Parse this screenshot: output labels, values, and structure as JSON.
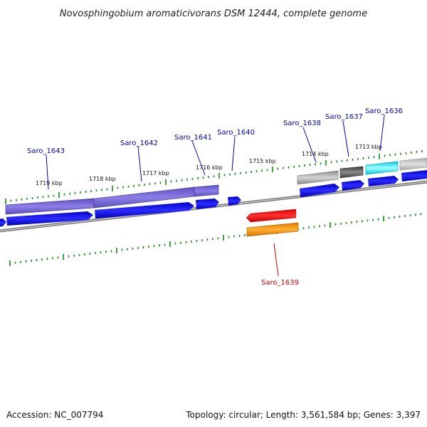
{
  "title": "Novosphingobium aromaticivorans DSM 12444, complete genome",
  "footer": {
    "accession": "Accession: NC_007794",
    "summary": "Topology: circular; Length: 3,561,584 bp; Genes: 3,397"
  },
  "ticks": [
    {
      "label": "1719 kbp"
    },
    {
      "label": "1718 kbp"
    },
    {
      "label": "1717 kbp"
    },
    {
      "label": "1716 kbp"
    },
    {
      "label": "1715 kbp"
    },
    {
      "label": "1714 kbp"
    },
    {
      "label": "1713 kbp"
    }
  ],
  "genes": [
    {
      "label": "Saro_1643",
      "strand": "forward"
    },
    {
      "label": "Saro_1642",
      "strand": "forward"
    },
    {
      "label": "Saro_1641",
      "strand": "forward"
    },
    {
      "label": "Saro_1640",
      "strand": "forward"
    },
    {
      "label": "Saro_1638",
      "strand": "forward"
    },
    {
      "label": "Saro_1637",
      "strand": "forward"
    },
    {
      "label": "Saro_1636",
      "strand": "forward"
    },
    {
      "label": "Saro_1639",
      "strand": "reverse"
    }
  ],
  "colors": {
    "backbone": "#888888",
    "forward_cds": "#0a0ae0",
    "reverse_cds": "#e00000",
    "reverse_feature": "#f08a00",
    "tick": "#1a8a1a",
    "label_forward": "#0000b0",
    "label_reverse": "#cc0000",
    "feature_purple": "#6a5acd",
    "feature_grey": "#a0a0a0",
    "feature_dark_grey": "#5a5a5a",
    "feature_cyan": "#00e0f0"
  }
}
